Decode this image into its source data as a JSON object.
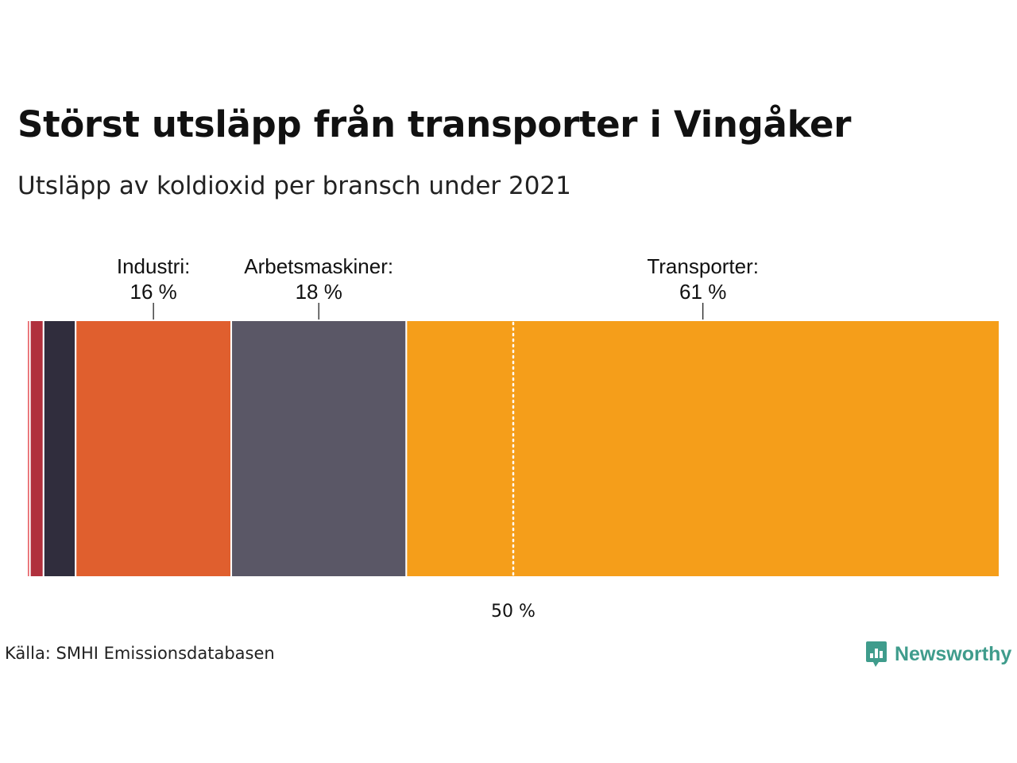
{
  "header": {
    "title": "Störst utsläpp från transporter i Vingåker",
    "subtitle": "Utsläpp av koldioxid per bransch under 2021"
  },
  "chart_data": {
    "type": "bar",
    "orientation": "horizontal",
    "stacked": true,
    "title": "Störst utsläpp från transporter i Vingåker",
    "subtitle": "Utsläpp av koldioxid per bransch under 2021",
    "unit": "%",
    "xlim": [
      0,
      100
    ],
    "segments": [
      {
        "label": "",
        "value": 0.3,
        "color": "#e65a5f",
        "labeled": false
      },
      {
        "label": "",
        "value": 1.4,
        "color": "#b0303d",
        "labeled": false
      },
      {
        "label": "",
        "value": 3.3,
        "color": "#302d3d",
        "labeled": false
      },
      {
        "label": "Industri:",
        "value_label": "16 %",
        "value": 16,
        "color": "#e05f2e",
        "labeled": true
      },
      {
        "label": "Arbetsmaskiner:",
        "value_label": "18 %",
        "value": 18,
        "color": "#5a5766",
        "labeled": true
      },
      {
        "label": "Transporter:",
        "value_label": "61 %",
        "value": 61,
        "color": "#f59e1a",
        "labeled": true
      }
    ],
    "reference_line": {
      "value": 50,
      "label": "50 %",
      "style": "dotted"
    }
  },
  "footer": {
    "source": "Källa: SMHI Emissionsdatabasen",
    "brand": "Newsworthy",
    "brand_color": "#3f9c8c"
  }
}
